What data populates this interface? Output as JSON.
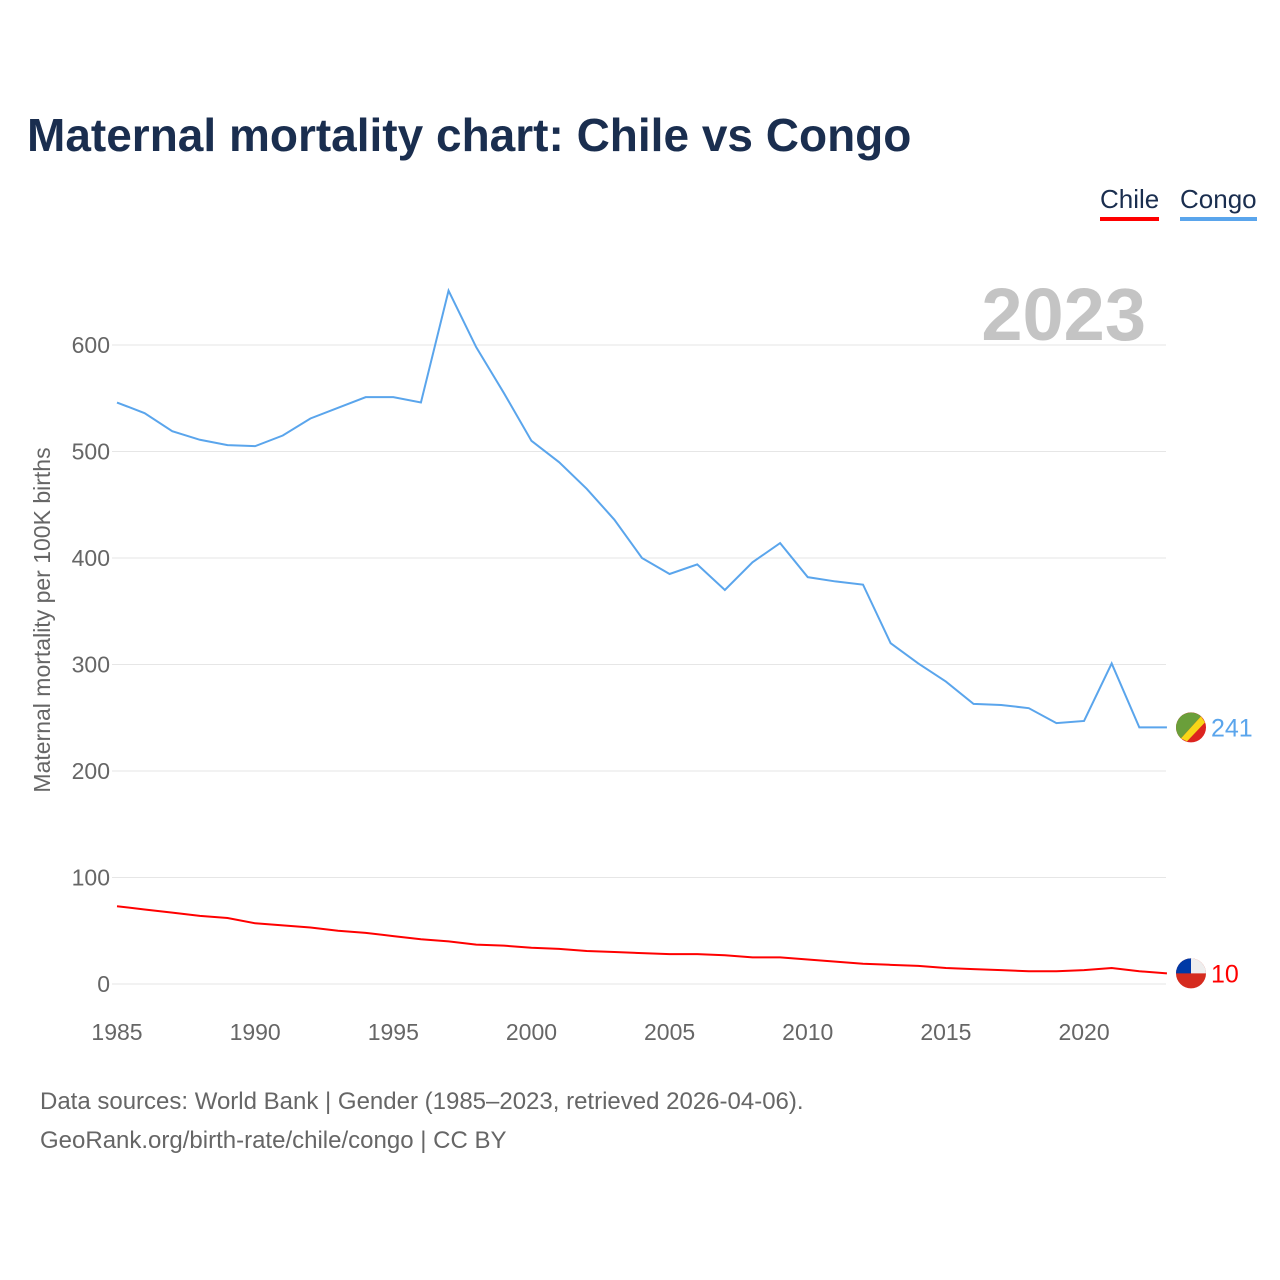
{
  "title": "Maternal mortality chart: Chile vs Congo",
  "footer": {
    "line1": "Data sources: World Bank | Gender (1985–2023, retrieved 2026-04-06).",
    "line2": "GeoRank.org/birth-rate/chile/congo | CC BY"
  },
  "chart_data": {
    "type": "line",
    "title": "Maternal mortality chart: Chile vs Congo",
    "ylabel": "Maternal mortality per 100K births",
    "xlabel": "",
    "year_label": "2023",
    "xlim": [
      1985,
      2023
    ],
    "ylim": [
      0,
      650
    ],
    "xticks": [
      1985,
      1990,
      1995,
      2000,
      2005,
      2010,
      2015,
      2020
    ],
    "yticks": [
      0,
      100,
      200,
      300,
      400,
      500,
      600
    ],
    "legend": "top-right",
    "x": [
      1985,
      1986,
      1987,
      1988,
      1989,
      1990,
      1991,
      1992,
      1993,
      1994,
      1995,
      1996,
      1997,
      1998,
      1999,
      2000,
      2001,
      2002,
      2003,
      2004,
      2005,
      2006,
      2007,
      2008,
      2009,
      2010,
      2011,
      2012,
      2013,
      2014,
      2015,
      2016,
      2017,
      2018,
      2019,
      2020,
      2021,
      2022,
      2023
    ],
    "series": [
      {
        "name": "Chile",
        "color": "#ff0000",
        "end_label": "10",
        "values": [
          73,
          70,
          67,
          64,
          62,
          57,
          55,
          53,
          50,
          48,
          45,
          42,
          40,
          37,
          36,
          34,
          33,
          31,
          30,
          29,
          28,
          28,
          27,
          25,
          25,
          23,
          21,
          19,
          18,
          17,
          15,
          14,
          13,
          12,
          12,
          13,
          15,
          12,
          10
        ]
      },
      {
        "name": "Congo",
        "color": "#5aa5ec",
        "end_label": "241",
        "values": [
          546,
          536,
          519,
          511,
          506,
          505,
          515,
          531,
          541,
          551,
          551,
          546,
          651,
          598,
          555,
          510,
          490,
          465,
          436,
          400,
          385,
          394,
          370,
          396,
          414,
          382,
          378,
          375,
          320,
          301,
          284,
          263,
          262,
          259,
          245,
          247,
          301,
          241,
          241
        ]
      }
    ]
  }
}
